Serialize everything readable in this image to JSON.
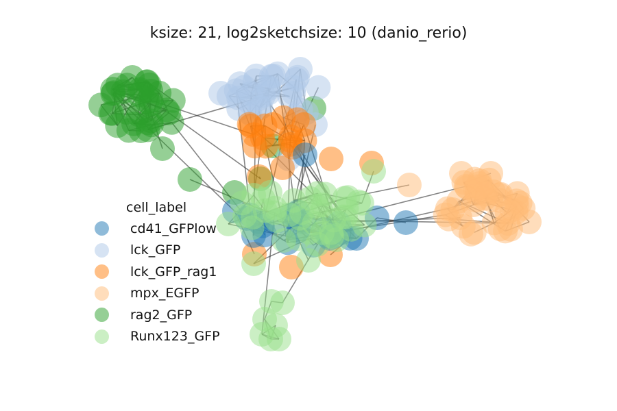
{
  "chart_data": {
    "type": "scatter",
    "title": "ksize: 21, log2sketchsize: 10 (danio_rerio)",
    "legend": {
      "title": "cell_label",
      "placement": "left",
      "entries": [
        {
          "label": "cd41_GFPlow",
          "color": "#1f77b4"
        },
        {
          "label": "lck_GFP",
          "color": "#aec7e8"
        },
        {
          "label": "lck_GFP_rag1",
          "color": "#ff7f0e"
        },
        {
          "label": "mpx_EGFP",
          "color": "#ffbb78"
        },
        {
          "label": "rag2_GFP",
          "color": "#2ca02c"
        },
        {
          "label": "Runx123_GFP",
          "color": "#98df8a"
        }
      ]
    },
    "grid": false,
    "axes_visible": false
  }
}
